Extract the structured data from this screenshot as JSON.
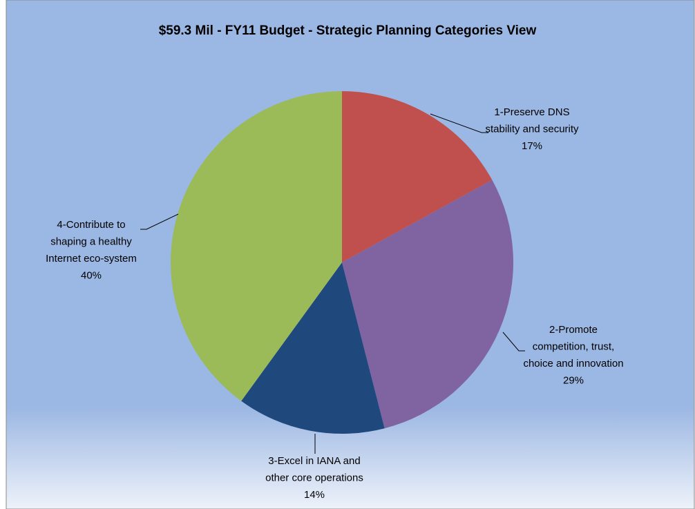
{
  "chart_data": {
    "type": "pie",
    "title": "$59.3 Mil - FY11 Budget - Strategic Planning Categories View",
    "categories": [
      [
        "1-Preserve DNS",
        "stability and  security"
      ],
      [
        "2-Promote",
        "competition, trust,",
        "choice and innovation"
      ],
      [
        "3-Excel in IANA and",
        "other core operations"
      ],
      [
        "4-Contribute to",
        "shaping a healthy",
        "Internet eco-system"
      ]
    ],
    "values": [
      17,
      29,
      14,
      40
    ],
    "value_labels": [
      "17%",
      "29%",
      "14%",
      "40%"
    ],
    "colors": [
      "#c0504d",
      "#8064a2",
      "#1f497d",
      "#9bbb59"
    ]
  }
}
